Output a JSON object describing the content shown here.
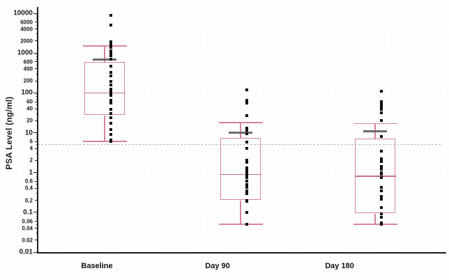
{
  "chart_data": {
    "type": "box",
    "title": "",
    "ylabel": "PSA Level (ng/ml)",
    "xlabel": "",
    "yscale": "log",
    "ylim": [
      0.01,
      10000
    ],
    "grid": false,
    "legend": "none",
    "yticks": [
      {
        "v": 10000,
        "label": "10000",
        "major": true
      },
      {
        "v": 6000,
        "label": "6000",
        "major": false
      },
      {
        "v": 4000,
        "label": "4000",
        "major": false
      },
      {
        "v": 2000,
        "label": "2000",
        "major": false
      },
      {
        "v": 1000,
        "label": "1000",
        "major": true
      },
      {
        "v": 600,
        "label": "600",
        "major": false
      },
      {
        "v": 400,
        "label": "400",
        "major": false
      },
      {
        "v": 200,
        "label": "200",
        "major": false
      },
      {
        "v": 100,
        "label": "100",
        "major": true
      },
      {
        "v": 60,
        "label": "60",
        "major": false
      },
      {
        "v": 40,
        "label": "40",
        "major": false
      },
      {
        "v": 20,
        "label": "20",
        "major": false
      },
      {
        "v": 10,
        "label": "10",
        "major": true
      },
      {
        "v": 6,
        "label": "6",
        "major": false
      },
      {
        "v": 4,
        "label": "4",
        "major": false
      },
      {
        "v": 2,
        "label": "2",
        "major": false
      },
      {
        "v": 1,
        "label": "1",
        "major": true
      },
      {
        "v": 0.6,
        "label": "0.6",
        "major": false
      },
      {
        "v": 0.4,
        "label": "0.4",
        "major": false
      },
      {
        "v": 0.2,
        "label": "0.2",
        "major": false
      },
      {
        "v": 0.1,
        "label": "0.1",
        "major": true
      },
      {
        "v": 0.06,
        "label": "0.06",
        "major": false
      },
      {
        "v": 0.04,
        "label": "0.04",
        "major": false
      },
      {
        "v": 0.02,
        "label": "0.02",
        "major": false
      },
      {
        "v": 0.01,
        "label": "0.01",
        "major": true
      }
    ],
    "refline": {
      "value": 5,
      "style": "dashed"
    },
    "categories": [
      "Baseline",
      "Day 90",
      "Day 180"
    ],
    "series": [
      {
        "name": "Baseline",
        "whisker_low": 6,
        "q1": 27,
        "median": 100,
        "q3": 600,
        "whisker_high": 1500,
        "mean": 700,
        "points": [
          9000,
          5000,
          1900,
          1600,
          1400,
          1150,
          1000,
          850,
          700,
          470,
          330,
          270,
          190,
          155,
          125,
          115,
          98,
          85,
          65,
          55,
          38,
          30,
          24,
          17,
          12,
          9,
          6.5,
          6
        ]
      },
      {
        "name": "Day 90",
        "whisker_low": 0.05,
        "q1": 0.2,
        "median": 0.9,
        "q3": 7.5,
        "whisker_high": 18,
        "mean": 10,
        "points": [
          120,
          65,
          55,
          27,
          13,
          11.5,
          9.3,
          5.7,
          4.1,
          2.0,
          1.8,
          1.3,
          1.1,
          0.95,
          0.85,
          0.75,
          0.6,
          0.5,
          0.42,
          0.35,
          0.3,
          0.2,
          0.19,
          0.1,
          0.05
        ]
      },
      {
        "name": "Day 180",
        "whisker_low": 0.05,
        "q1": 0.09,
        "median": 0.8,
        "q3": 7,
        "whisker_high": 17,
        "mean": 11,
        "points": [
          110,
          60,
          52,
          45,
          38,
          31,
          20,
          8,
          3.5,
          2.2,
          1.9,
          1.4,
          1.2,
          1.0,
          0.9,
          0.75,
          0.43,
          0.34,
          0.25,
          0.21,
          0.13,
          0.09,
          0.075,
          0.055,
          0.05
        ]
      }
    ],
    "colors": {
      "box": "#d7839d",
      "median": "#c2708f",
      "mean": "#6b6b6b",
      "points": "#0d0d0d",
      "axis": "#1c1c1c",
      "refline": "#b8b8b8",
      "text": "#1a1a1a"
    }
  }
}
